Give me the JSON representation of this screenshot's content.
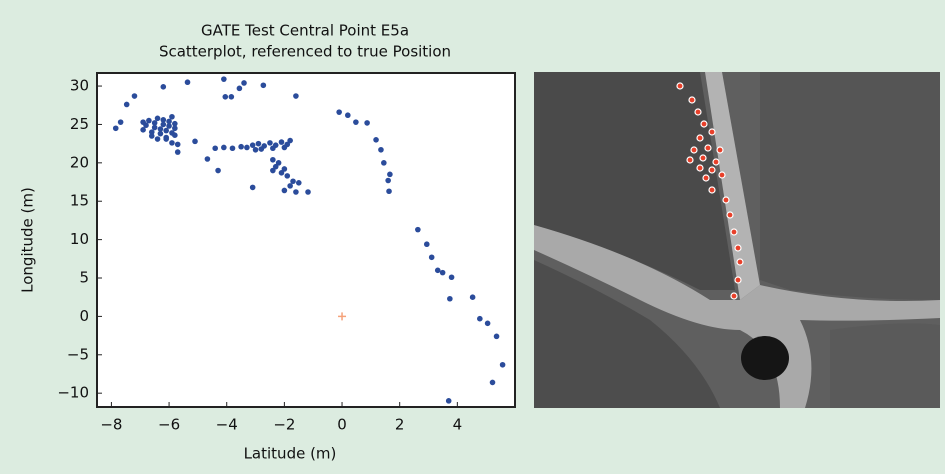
{
  "chart_data": {
    "type": "scatter",
    "title": "GATE Test Central Point E5a",
    "subtitle": "Scatterplot, referenced to true Position",
    "x_label": "Latitude (m)",
    "y_label": "Longitude (m)",
    "xlim": [
      -8.5,
      6
    ],
    "ylim": [
      -11.8,
      31.7
    ],
    "xticks": [
      {
        "value": -8,
        "label": "−8"
      },
      {
        "value": -6,
        "label": "−6"
      },
      {
        "value": -4,
        "label": "−4"
      },
      {
        "value": -2,
        "label": "−2"
      },
      0,
      2,
      4
    ],
    "yticks": [
      {
        "value": -10,
        "label": "−10"
      },
      {
        "value": -5,
        "label": "−5"
      },
      0,
      5,
      10,
      15,
      20,
      25,
      30
    ],
    "reference_point": {
      "x": 0,
      "y": 0,
      "color": "#f5a27a"
    },
    "series": [
      {
        "color": "#2b4c9b",
        "x": [
          -7.85,
          -7.68,
          -7.47,
          -7.2,
          -6.2,
          -5.36,
          -4.1,
          -4.05,
          -3.84,
          -3.56,
          -3.4,
          -2.73,
          -1.6,
          -0.1,
          0.2,
          0.48,
          0.87,
          1.18,
          1.35,
          1.45,
          1.66,
          1.6,
          1.63,
          2.63,
          2.94,
          3.11,
          3.32,
          3.49,
          3.8,
          3.74,
          4.53,
          4.78,
          5.05,
          5.36,
          5.57,
          5.22,
          3.7,
          -6.9,
          -6.8,
          -6.7,
          -6.6,
          -6.5,
          -6.5,
          -6.4,
          -6.3,
          -6.3,
          -6.2,
          -6.2,
          -6.1,
          -6.0,
          -6.0,
          -5.9,
          -5.9,
          -5.8,
          -5.8,
          -6.6,
          -6.1,
          -6.9,
          -5.8,
          -6.4,
          -5.9,
          -4.4,
          -4.1,
          -3.8,
          -3.5,
          -3.3,
          -3.1,
          -2.9,
          -2.7,
          -2.5,
          -2.3,
          -2.1,
          -1.9,
          -2.8,
          -2.4,
          -2.0,
          -3.0,
          -1.8,
          -2.4,
          -2.2,
          -2.3,
          -2.0,
          -2.1,
          -1.9,
          -1.7,
          -1.8,
          -2.0,
          -1.6,
          -2.4,
          -1.5,
          -6.1,
          -5.7,
          -5.7,
          -5.1,
          -4.67,
          -4.3,
          -3.1,
          -1.18
        ],
        "y": [
          24.5,
          25.3,
          27.6,
          28.7,
          29.9,
          30.5,
          30.9,
          28.6,
          28.6,
          29.7,
          30.4,
          30.1,
          28.7,
          26.6,
          26.2,
          25.3,
          25.2,
          23.0,
          21.7,
          20.0,
          18.5,
          17.7,
          16.3,
          11.3,
          9.4,
          7.7,
          6.0,
          5.7,
          5.1,
          2.3,
          2.5,
          -0.3,
          -0.9,
          -2.6,
          -6.3,
          -8.6,
          -11.0,
          24.3,
          24.9,
          25.5,
          24.0,
          24.6,
          25.2,
          25.8,
          23.8,
          24.4,
          25.0,
          25.6,
          24.2,
          24.8,
          25.4,
          23.9,
          26.0,
          24.5,
          25.1,
          23.5,
          23.3,
          25.3,
          23.6,
          23.1,
          22.6,
          21.9,
          22.0,
          21.9,
          22.1,
          22.0,
          22.3,
          22.5,
          22.2,
          22.6,
          22.3,
          22.7,
          22.4,
          21.8,
          21.9,
          22.0,
          21.7,
          22.9,
          20.4,
          20.0,
          19.5,
          19.2,
          18.7,
          18.3,
          17.6,
          17.0,
          16.4,
          16.2,
          19.0,
          17.4,
          23.1,
          22.4,
          21.4,
          22.8,
          20.5,
          19.0,
          16.8,
          16.2
        ]
      }
    ]
  }
}
